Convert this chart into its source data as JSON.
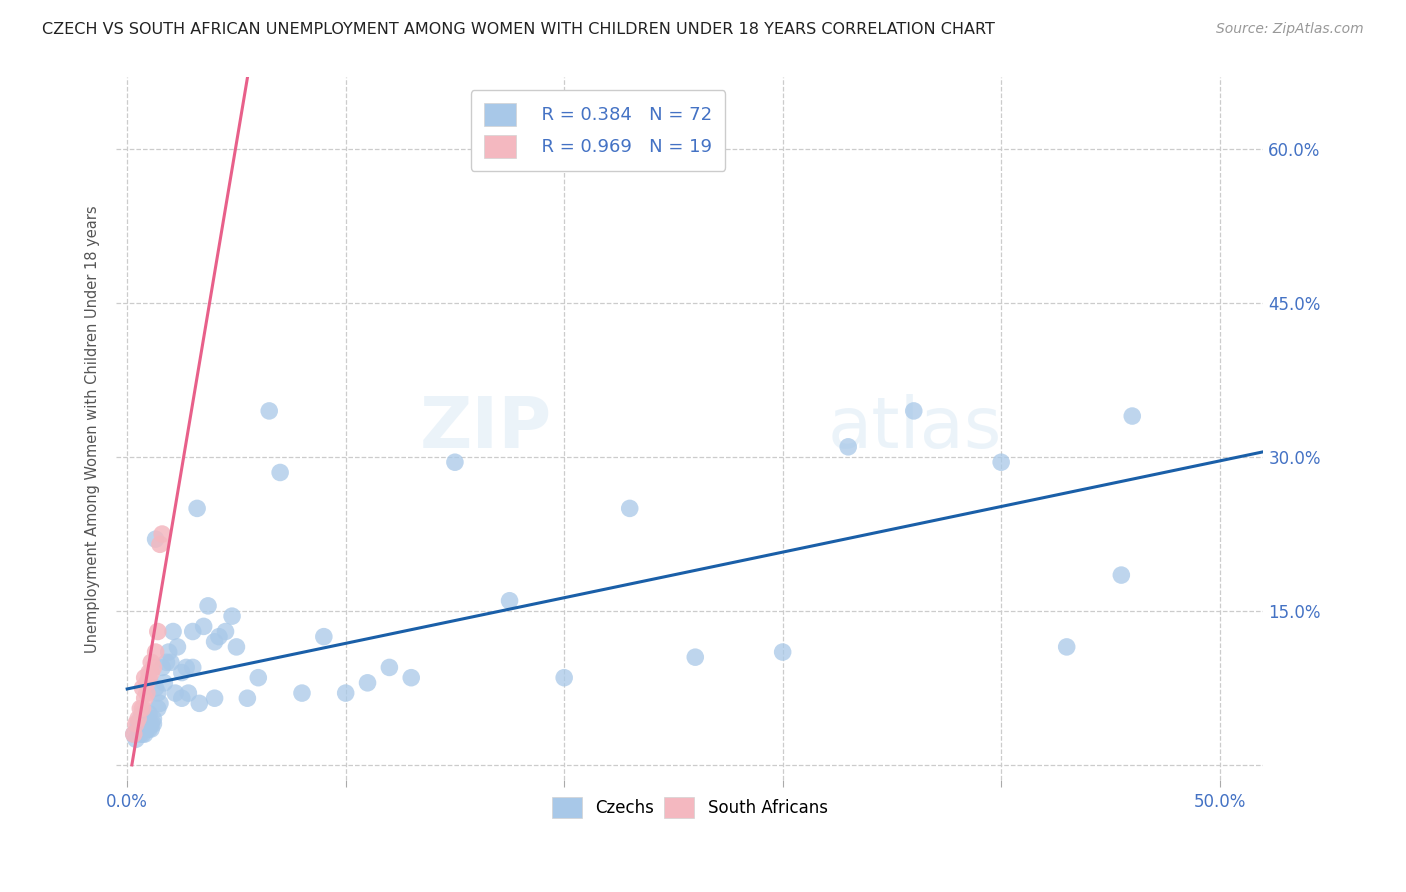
{
  "title": "CZECH VS SOUTH AFRICAN UNEMPLOYMENT AMONG WOMEN WITH CHILDREN UNDER 18 YEARS CORRELATION CHART",
  "source": "Source: ZipAtlas.com",
  "ylabel": "Unemployment Among Women with Children Under 18 years",
  "xlim": [
    -0.005,
    0.52
  ],
  "ylim": [
    -0.015,
    0.67
  ],
  "legend_blue_r": "R = 0.384",
  "legend_blue_n": "N = 72",
  "legend_pink_r": "R = 0.969",
  "legend_pink_n": "N = 19",
  "legend_label_blue": "Czechs",
  "legend_label_pink": "South Africans",
  "blue_color": "#a8c8e8",
  "pink_color": "#f4b8c0",
  "blue_line_color": "#1a5fa8",
  "pink_line_color": "#e8608a",
  "axis_color": "#4472c4",
  "title_color": "#222222",
  "source_color": "#999999",
  "background_color": "#ffffff",
  "grid_color": "#cccccc",
  "watermark": "ZIPatlas",
  "czechs_x": [
    0.003,
    0.004,
    0.005,
    0.005,
    0.006,
    0.006,
    0.007,
    0.007,
    0.007,
    0.008,
    0.008,
    0.008,
    0.009,
    0.009,
    0.01,
    0.01,
    0.01,
    0.011,
    0.011,
    0.012,
    0.012,
    0.013,
    0.013,
    0.014,
    0.014,
    0.015,
    0.016,
    0.017,
    0.018,
    0.019,
    0.02,
    0.021,
    0.022,
    0.023,
    0.025,
    0.025,
    0.027,
    0.028,
    0.03,
    0.03,
    0.032,
    0.033,
    0.035,
    0.037,
    0.04,
    0.04,
    0.042,
    0.045,
    0.048,
    0.05,
    0.055,
    0.06,
    0.065,
    0.07,
    0.08,
    0.09,
    0.1,
    0.11,
    0.12,
    0.13,
    0.15,
    0.175,
    0.2,
    0.23,
    0.26,
    0.3,
    0.33,
    0.36,
    0.4,
    0.43,
    0.455,
    0.46
  ],
  "czechs_y": [
    0.03,
    0.025,
    0.035,
    0.04,
    0.03,
    0.045,
    0.035,
    0.03,
    0.05,
    0.035,
    0.04,
    0.03,
    0.035,
    0.045,
    0.04,
    0.035,
    0.05,
    0.035,
    0.04,
    0.04,
    0.045,
    0.22,
    0.075,
    0.055,
    0.07,
    0.06,
    0.095,
    0.08,
    0.1,
    0.11,
    0.1,
    0.13,
    0.07,
    0.115,
    0.09,
    0.065,
    0.095,
    0.07,
    0.095,
    0.13,
    0.25,
    0.06,
    0.135,
    0.155,
    0.12,
    0.065,
    0.125,
    0.13,
    0.145,
    0.115,
    0.065,
    0.085,
    0.345,
    0.285,
    0.07,
    0.125,
    0.07,
    0.08,
    0.095,
    0.085,
    0.295,
    0.16,
    0.085,
    0.25,
    0.105,
    0.11,
    0.31,
    0.345,
    0.295,
    0.115,
    0.185,
    0.34
  ],
  "sa_x": [
    0.003,
    0.004,
    0.005,
    0.006,
    0.007,
    0.007,
    0.008,
    0.008,
    0.009,
    0.009,
    0.01,
    0.01,
    0.011,
    0.011,
    0.012,
    0.013,
    0.014,
    0.015,
    0.016
  ],
  "sa_y": [
    0.03,
    0.04,
    0.045,
    0.055,
    0.055,
    0.075,
    0.065,
    0.085,
    0.07,
    0.08,
    0.085,
    0.09,
    0.09,
    0.1,
    0.095,
    0.11,
    0.13,
    0.215,
    0.225
  ],
  "blue_intercept": 0.055,
  "blue_slope": 0.42,
  "pink_intercept": -0.08,
  "pink_slope": 22.0
}
